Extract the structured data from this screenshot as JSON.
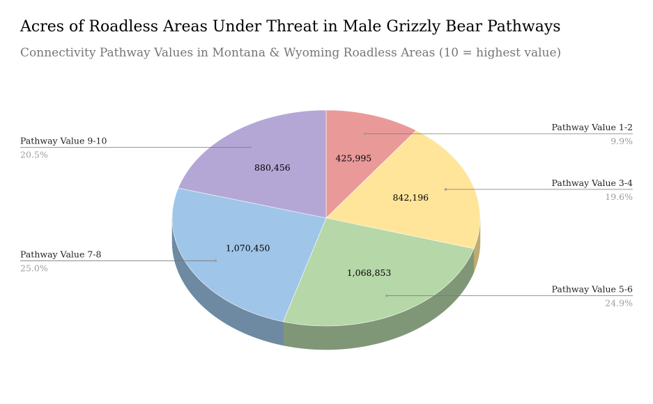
{
  "chart_data": {
    "type": "pie",
    "title": "Acres of Roadless Areas Under Threat in Male Grizzly Bear Pathways",
    "subtitle": "Connectivity Pathway Values in Montana & Wyoming Roadless Areas (10 = highest value)",
    "categories": [
      "Pathway Value 1-2",
      "Pathway Value 3-4",
      "Pathway Value 5-6",
      "Pathway Value 7-8",
      "Pathway Value 9-10"
    ],
    "values": [
      425995,
      842196,
      1068853,
      1070450,
      880456
    ],
    "value_labels": [
      "425,995",
      "842,196",
      "1,068,853",
      "1,070,450",
      "880,456"
    ],
    "percent_labels": [
      "9.9%",
      "19.6%",
      "24.9%",
      "25.0%",
      "20.5%"
    ],
    "colors": [
      "#ea9999",
      "#ffe599",
      "#b6d7a8",
      "#9fc5e8",
      "#b4a7d6"
    ],
    "side_colors": [
      "#b07373",
      "#bfac73",
      "#7f9777",
      "#6e8aa3",
      "#7e7596"
    ],
    "style": "3d",
    "legend": "none"
  }
}
